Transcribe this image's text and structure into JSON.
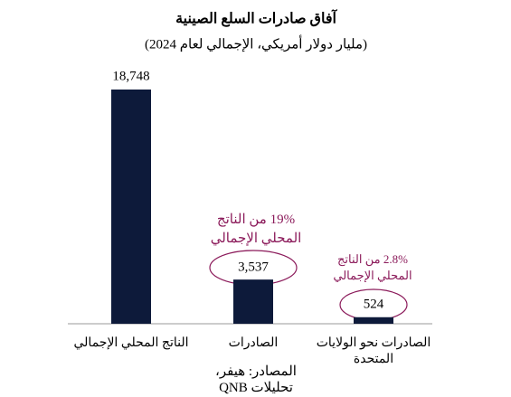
{
  "chart_data": {
    "type": "bar",
    "title": "آفاق صادرات السلع الصينية",
    "subtitle": "(مليار دولار أمريكي، الإجمالي لعام 2024)",
    "categories": [
      "الناتج المحلي الإجمالي",
      "الصادرات",
      "الصادرات نحو الولايات المتحدة"
    ],
    "values": [
      18748,
      3537,
      524
    ],
    "value_labels": [
      "18,748",
      "3,537",
      "524"
    ],
    "color": "#0d1a3a",
    "annotations": [
      "19% من الناتج المحلي الإجمالي",
      "2.8% من الناتج المحلي الإجمالي"
    ],
    "annotation_color": "#8b1a5a",
    "source": "المصادر: هيفر، تحليلات QNB"
  }
}
